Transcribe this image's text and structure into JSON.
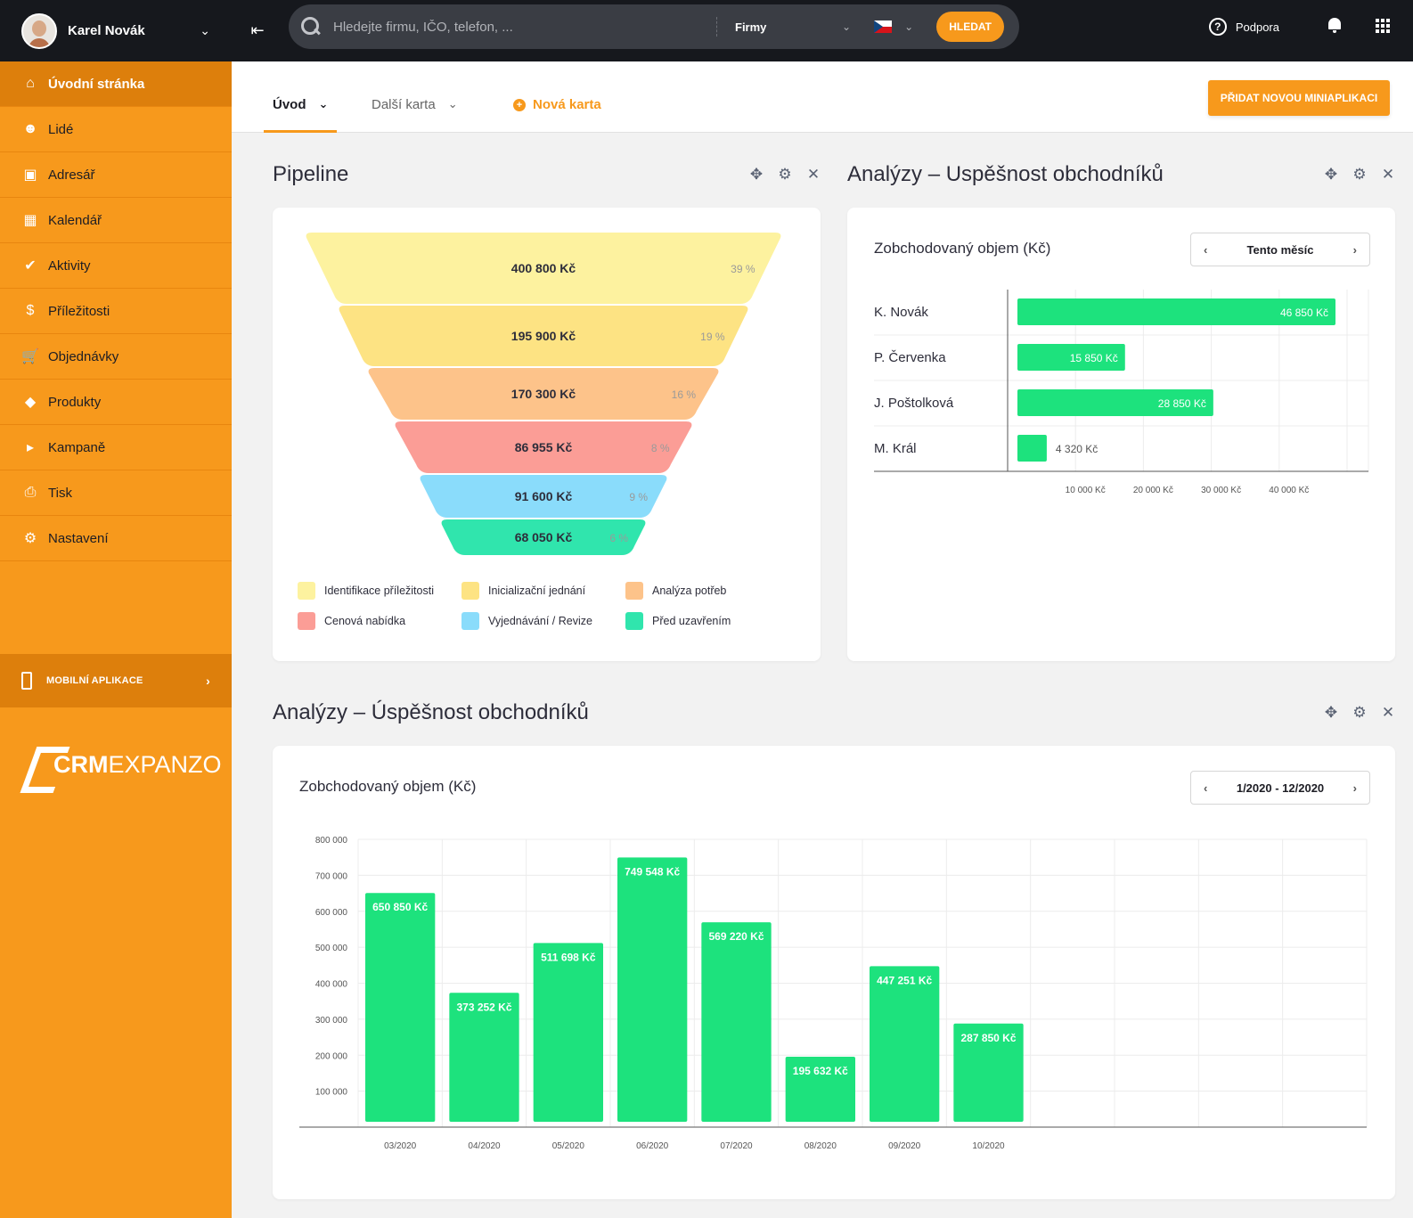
{
  "user": {
    "name": "Karel Novák"
  },
  "sidebar": {
    "items": [
      {
        "label": "Úvodní stránka",
        "icon": "home-icon",
        "active": true
      },
      {
        "label": "Lidé",
        "icon": "people-icon"
      },
      {
        "label": "Adresář",
        "icon": "address-book-icon"
      },
      {
        "label": "Kalendář",
        "icon": "calendar-icon"
      },
      {
        "label": "Aktivity",
        "icon": "check-circle-icon"
      },
      {
        "label": "Příležitosti",
        "icon": "dollar-icon"
      },
      {
        "label": "Objednávky",
        "icon": "cart-icon"
      },
      {
        "label": "Produkty",
        "icon": "diamond-icon"
      },
      {
        "label": "Kampaně",
        "icon": "megaphone-icon"
      },
      {
        "label": "Tisk",
        "icon": "printer-icon"
      },
      {
        "label": "Nastavení",
        "icon": "gear-icon"
      }
    ],
    "mobile_app": "MOBILNÍ APLIKACE",
    "logo_crm": "CRM",
    "logo_expanzo": "EXPANZO"
  },
  "topbar": {
    "search_placeholder": "Hledejte firmu, IČO, telefon, ...",
    "category": "Firmy",
    "search_button": "HLEDAT",
    "support": "Podpora"
  },
  "tabs": {
    "items": [
      "Úvod",
      "Další karta"
    ],
    "new_tab": "Nová karta",
    "add_button": "PŘIDAT NOVOU MINIAPLIKACI"
  },
  "colors": {
    "accent": "#f7991c",
    "bar": "#1de27d"
  },
  "pipeline": {
    "title": "Pipeline",
    "chart_data": {
      "type": "funnel",
      "stages": [
        {
          "name": "Identifikace příležitosti",
          "value_label": "400 800 Kč",
          "percent_label": "39 %",
          "value": 400800,
          "percent": 39,
          "color": "#fdf29f"
        },
        {
          "name": "Inicializační jednání",
          "value_label": "195 900 Kč",
          "percent_label": "19 %",
          "value": 195900,
          "percent": 19,
          "color": "#fde383"
        },
        {
          "name": "Analýza potřeb",
          "value_label": "170 300 Kč",
          "percent_label": "16 %",
          "value": 170300,
          "percent": 16,
          "color": "#fdc38a"
        },
        {
          "name": "Cenová nabídka",
          "value_label": "86 955 Kč",
          "percent_label": "8 %",
          "value": 86955,
          "percent": 8,
          "color": "#fb9d96"
        },
        {
          "name": "Vyjednávání / Revize",
          "value_label": "91 600 Kč",
          "percent_label": "9 %",
          "value": 91600,
          "percent": 9,
          "color": "#8adcfb"
        },
        {
          "name": "Před uzavřením",
          "value_label": "68 050 Kč",
          "percent_label": "6 %",
          "value": 68050,
          "percent": 6,
          "color": "#30e5ad"
        }
      ]
    }
  },
  "widget_top": {
    "title": "Analýzy – Uspěšnost obchodníků",
    "subtitle": "Zobchodovaný objem (Kč)",
    "period": "Tento měsíc",
    "chart_data": {
      "type": "bar",
      "orientation": "horizontal",
      "categories": [
        "K. Novák",
        "P. Červenka",
        "J. Poštolková",
        "M. Král"
      ],
      "values": [
        46850,
        15850,
        28850,
        4320
      ],
      "value_labels": [
        "46 850 Kč",
        "15 850 Kč",
        "28 850 Kč",
        "4 320 Kč"
      ],
      "x_ticks": [
        10000,
        20000,
        30000,
        40000
      ],
      "x_tick_labels": [
        "10 000 Kč",
        "20 000 Kč",
        "30 000 Kč",
        "40 000 Kč"
      ],
      "xlim": [
        0,
        50000
      ],
      "grid": true
    }
  },
  "widget_bottom": {
    "title": "Analýzy – Úspěšnost obchodníků",
    "subtitle": "Zobchodovaný objem (Kč)",
    "period": "1/2020 - 12/2020",
    "chart_data": {
      "type": "bar",
      "categories": [
        "03/2020",
        "04/2020",
        "05/2020",
        "06/2020",
        "07/2020",
        "08/2020",
        "09/2020",
        "10/2020"
      ],
      "values": [
        650850,
        373252,
        511698,
        749548,
        569220,
        195632,
        447251,
        287850
      ],
      "value_labels": [
        "650 850 Kč",
        "373 252 Kč",
        "511 698 Kč",
        "749 548 Kč",
        "569 220 Kč",
        "195 632 Kč",
        "447 251 Kč",
        "287 850 Kč"
      ],
      "y_ticks": [
        100000,
        200000,
        300000,
        400000,
        500000,
        600000,
        700000,
        800000
      ],
      "y_tick_labels": [
        "100 000",
        "200 000",
        "300 000",
        "400 000",
        "500 000",
        "600 000",
        "700 000",
        "800 000"
      ],
      "ylim": [
        0,
        800000
      ],
      "slots": 12,
      "grid": true
    }
  }
}
